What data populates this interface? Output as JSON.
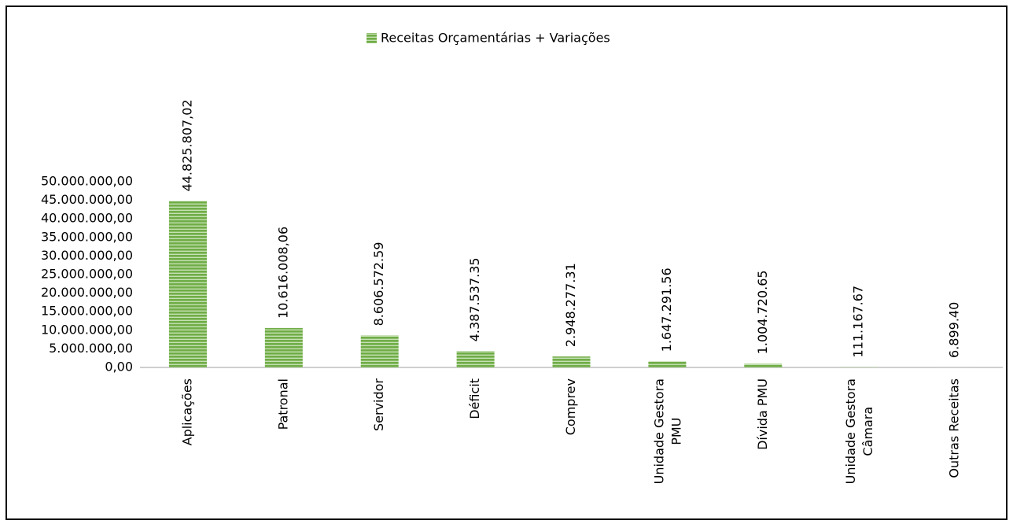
{
  "chart_data": {
    "type": "bar",
    "categories": [
      "Aplicações",
      "Patronal",
      "Servidor",
      "Déficit",
      "Comprev",
      "Unidade Gestora PMU",
      "Dívida PMU",
      "Unidade Gestora Câmara",
      "Outras Receitas"
    ],
    "series": [
      {
        "name": "Receitas Orçamentárias + Variações",
        "color": "#70ad47",
        "values": [
          44825807.02,
          10616008.06,
          8606572.59,
          4387537.35,
          2948277.31,
          1647291.56,
          1004720.65,
          111167.67,
          6899.4
        ],
        "value_labels": [
          "44.825.807,02",
          "10.616.008,06",
          "8.606.572.59",
          "4.387.537.35",
          "2.948.277.31",
          "1.647.291.56",
          "1.004.720.65",
          "111.167.67",
          "6.899.40"
        ]
      }
    ],
    "ylim": [
      0,
      50000000
    ],
    "yticks": [
      {
        "value": 0,
        "label": "0,00"
      },
      {
        "value": 5000000,
        "label": "5.000.000,00"
      },
      {
        "value": 10000000,
        "label": "10.000.000,00"
      },
      {
        "value": 15000000,
        "label": "15.000.000,00"
      },
      {
        "value": 20000000,
        "label": "20.000.000,00"
      },
      {
        "value": 25000000,
        "label": "25.000.000,00"
      },
      {
        "value": 30000000,
        "label": "30.000.000,00"
      },
      {
        "value": 35000000,
        "label": "35.000.000,00"
      },
      {
        "value": 40000000,
        "label": "40.000.000,00"
      },
      {
        "value": 45000000,
        "label": "45.000.000,00"
      },
      {
        "value": 50000000,
        "label": "50.000.000,00"
      }
    ],
    "legend": "top"
  }
}
